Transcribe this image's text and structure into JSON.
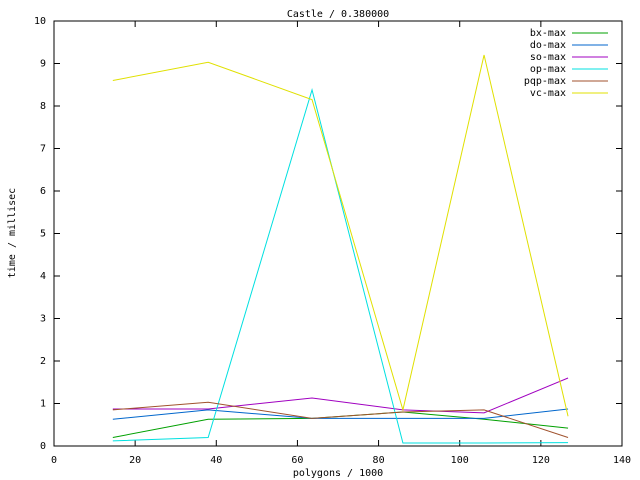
{
  "chart_data": {
    "type": "line",
    "title": "Castle / 0.380000",
    "x_label": "polygons / 1000",
    "y_label": "time / millisec",
    "x": [
      14.5,
      38,
      63.6,
      86,
      106,
      126.7
    ],
    "series": [
      {
        "name": "bx-max",
        "color": "#00a000",
        "values": [
          0.2,
          0.63,
          0.65,
          0.8,
          0.63,
          0.42
        ]
      },
      {
        "name": "do-max",
        "color": "#0066cc",
        "values": [
          0.63,
          0.85,
          0.65,
          0.65,
          0.65,
          0.87
        ]
      },
      {
        "name": "so-max",
        "color": "#a000c0",
        "values": [
          0.87,
          0.87,
          1.13,
          0.85,
          0.78,
          1.6
        ]
      },
      {
        "name": "op-max",
        "color": "#00e0e0",
        "values": [
          0.12,
          0.2,
          8.38,
          0.07,
          0.07,
          0.08
        ]
      },
      {
        "name": "pqp-max",
        "color": "#a0522d",
        "values": [
          0.85,
          1.03,
          0.65,
          0.8,
          0.85,
          0.2
        ]
      },
      {
        "name": "vc-max",
        "color": "#e0e000",
        "values": [
          8.6,
          9.03,
          8.15,
          0.85,
          9.2,
          0.7
        ]
      }
    ],
    "xlim": [
      0,
      140
    ],
    "xticks": [
      0,
      20,
      40,
      60,
      80,
      100,
      120,
      140
    ],
    "ylim": [
      0,
      10
    ],
    "yticks": [
      0,
      1,
      2,
      3,
      4,
      5,
      6,
      7,
      8,
      9,
      10
    ],
    "legend": "top-right"
  }
}
